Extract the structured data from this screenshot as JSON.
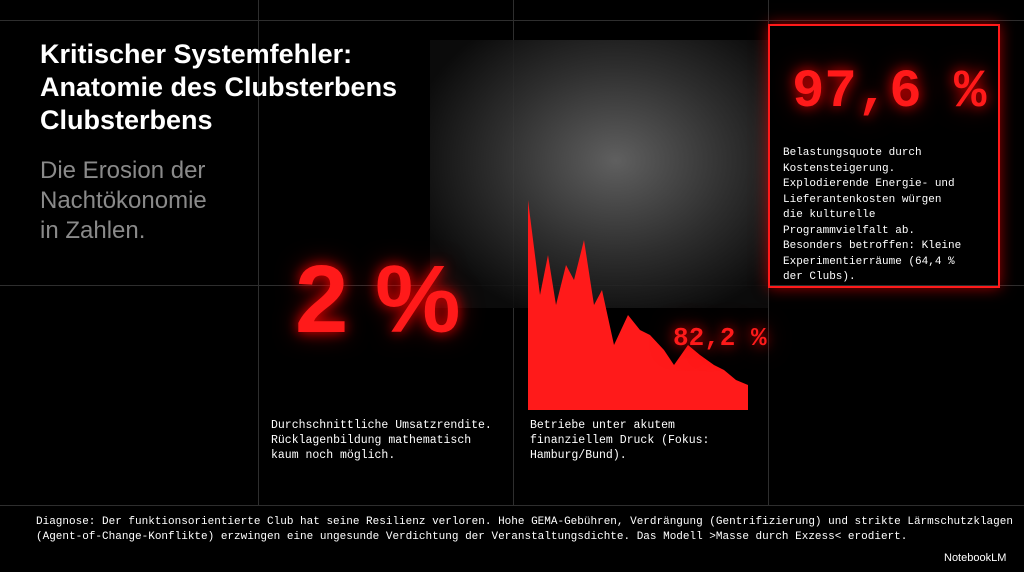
{
  "header": {
    "title_lines": [
      "Kritischer Systemfehler:",
      "Anatomie des Clubsterbens",
      "Clubsterbens"
    ],
    "subtitle_lines": [
      "Die Erosion der",
      "Nachtökonomie",
      "in Zahlen."
    ]
  },
  "stats": [
    {
      "figure": "2 %",
      "text_lines": [
        "Durchschnittliche Umsatzrendite.",
        "Rücklagenbildung mathematisch",
        "kaum noch möglich."
      ]
    },
    {
      "figure": "82,2 %",
      "text_lines": [
        "Betriebe unter akutem",
        "finanziellem Druck (Fokus:",
        "Hamburg/Bund)."
      ]
    },
    {
      "figure": "97,6 %",
      "text_lines": [
        "Belastungsquote durch",
        "Kostensteigerung.",
        "Explodierende Energie- und",
        "Lieferantenkosten würgen",
        "die kulturelle",
        "Programmvielfalt ab.",
        "Besonders betroffen: Kleine",
        "Experimentierräume (64,4 %",
        "der Clubs)."
      ]
    }
  ],
  "footer": {
    "diagnosis_lines": [
      "Diagnose: Der funktionsorientierte Club hat seine Resilienz verloren. Hohe GEMA-Gebühren, Verdrängung (Gentrifizierung) und strikte Lärmschutzklagen",
      "(Agent-of-Change-Konflikte) erzwingen eine ungesunde Verdichtung der Veranstaltungsdichte. Das Modell >Masse durch Exzess< erodiert."
    ],
    "brand": "NotebookLM"
  }
}
